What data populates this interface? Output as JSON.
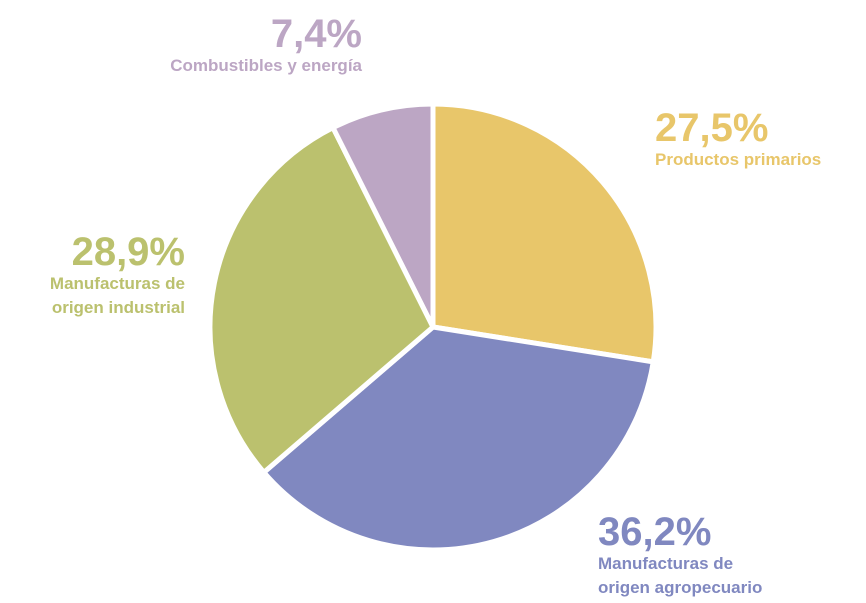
{
  "chart_data": {
    "type": "pie",
    "categories": [
      "Productos primarios",
      "Manufacturas de origen agropecuario",
      "Manufacturas de origen industrial",
      "Combustibles y energía"
    ],
    "values": [
      27.5,
      36.2,
      28.9,
      7.4
    ],
    "value_labels": [
      "27,5%",
      "36,2%",
      "28,9%",
      "7,4%"
    ],
    "colors": [
      "#e8c66a",
      "#8088c0",
      "#bbc16e",
      "#bca6c4"
    ]
  }
}
